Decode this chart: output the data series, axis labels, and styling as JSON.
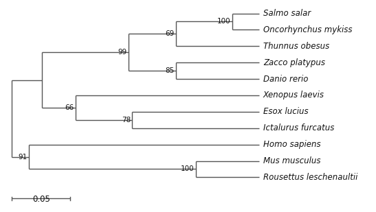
{
  "taxa": [
    "Salmo salar",
    "Oncorhynchus mykiss",
    "Thunnus obesus",
    "Zacco platypus",
    "Danio rerio",
    "Xenopus laevis",
    "Esox lucius",
    "Ictalurus furcatus",
    "Homo sapiens",
    "Mus musculus",
    "Rousettus leschenaultii"
  ],
  "line_color": "#555555",
  "text_color": "#111111",
  "fontsize_taxa": 8.5,
  "fontsize_bootstrap": 7.5,
  "fontsize_scale": 8.5,
  "scale_bar_label": "0.05"
}
